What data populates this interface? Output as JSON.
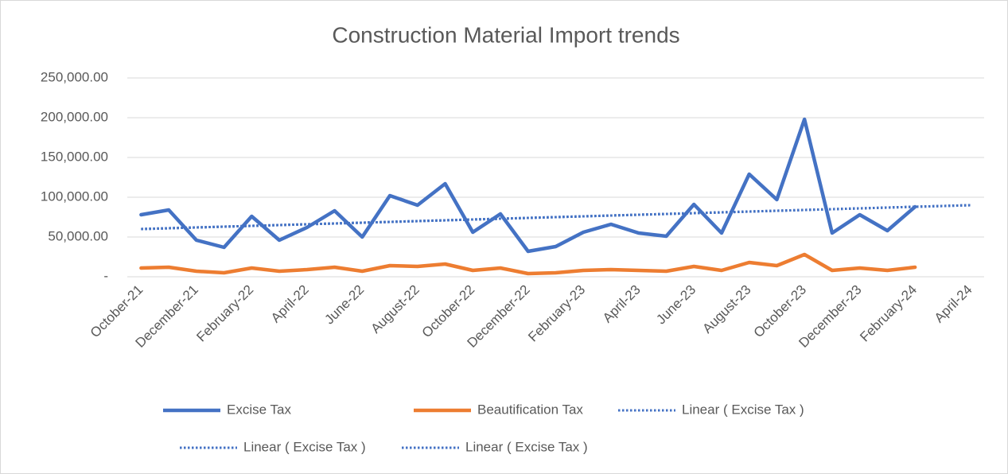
{
  "chart_data": {
    "type": "line",
    "title": "Construction Material Import trends",
    "categories": [
      "October-21",
      null,
      "December-21",
      null,
      "February-22",
      null,
      "April-22",
      null,
      "June-22",
      null,
      "August-22",
      null,
      "October-22",
      null,
      "December-22",
      null,
      "February-23",
      null,
      "April-23",
      null,
      "June-23",
      null,
      "August-23",
      null,
      "October-23",
      null,
      "December-23",
      null,
      "February-24",
      null,
      "April-24"
    ],
    "series": [
      {
        "name": "Excise Tax",
        "color": "#4472c4",
        "values": [
          78000,
          84000,
          46000,
          37000,
          76000,
          46000,
          62000,
          83000,
          50000,
          102000,
          90000,
          117000,
          56000,
          79000,
          32000,
          38000,
          56000,
          66000,
          55000,
          51000,
          91000,
          55000,
          129000,
          97000,
          198000,
          55000,
          78000,
          58000,
          88000,
          null,
          null
        ]
      },
      {
        "name": "Beautification Tax",
        "color": "#ed7d31",
        "values": [
          11000,
          12000,
          7000,
          5000,
          11000,
          7000,
          9000,
          12000,
          7000,
          14000,
          13000,
          16000,
          8000,
          11000,
          4000,
          5000,
          8000,
          9000,
          8000,
          7000,
          13000,
          8000,
          18000,
          14000,
          28000,
          8000,
          11000,
          8000,
          12000,
          null,
          null
        ]
      },
      {
        "name": "Linear ( Excise Tax )",
        "color": "#4472c4",
        "dashed": true,
        "values": [
          60000,
          61000,
          62000,
          63000,
          64000,
          65000,
          66000,
          67000,
          68000,
          69000,
          70000,
          71000,
          72000,
          73000,
          74000,
          75000,
          76000,
          77000,
          78000,
          79000,
          80000,
          81000,
          82000,
          83000,
          84000,
          85000,
          86000,
          87000,
          88000,
          89000,
          90000
        ]
      },
      {
        "name": "Linear ( Excise Tax )",
        "color": "#4472c4",
        "dashed": true,
        "values": [
          60000,
          61000,
          62000,
          63000,
          64000,
          65000,
          66000,
          67000,
          68000,
          69000,
          70000,
          71000,
          72000,
          73000,
          74000,
          75000,
          76000,
          77000,
          78000,
          79000,
          80000,
          81000,
          82000,
          83000,
          84000,
          85000,
          86000,
          87000,
          88000,
          89000,
          90000
        ]
      },
      {
        "name": "Linear ( Excise Tax )",
        "color": "#4472c4",
        "dashed": true,
        "values": [
          60000,
          61000,
          62000,
          63000,
          64000,
          65000,
          66000,
          67000,
          68000,
          69000,
          70000,
          71000,
          72000,
          73000,
          74000,
          75000,
          76000,
          77000,
          78000,
          79000,
          80000,
          81000,
          82000,
          83000,
          84000,
          85000,
          86000,
          87000,
          88000,
          89000,
          90000
        ]
      }
    ],
    "ylim": [
      0,
      250000
    ],
    "yticks": [
      {
        "value": 0,
        "label": "-"
      },
      {
        "value": 50000,
        "label": "50,000.00"
      },
      {
        "value": 100000,
        "label": "100,000.00"
      },
      {
        "value": 150000,
        "label": "150,000.00"
      },
      {
        "value": 200000,
        "label": "200,000.00"
      },
      {
        "value": 250000,
        "label": "250,000.00"
      }
    ],
    "grid": true,
    "legend": "bottom"
  }
}
